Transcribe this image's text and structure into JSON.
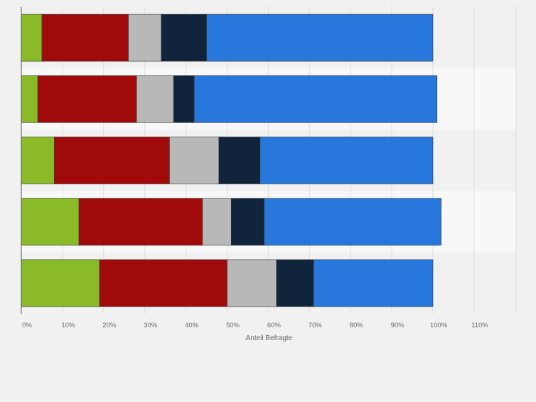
{
  "chart_data": {
    "type": "bar",
    "orientation": "horizontal",
    "stacked": true,
    "xlabel": "Anteil Befragte",
    "xlim": [
      0,
      120
    ],
    "xticks": [
      0,
      10,
      20,
      30,
      40,
      50,
      60,
      70,
      80,
      90,
      100,
      110
    ],
    "xtick_labels": [
      "0%",
      "10%",
      "20%",
      "30%",
      "40%",
      "50%",
      "60%",
      "70%",
      "80%",
      "90%",
      "100%",
      "110%"
    ],
    "categories": [
      "",
      "",
      "",
      "",
      ""
    ],
    "series": [
      {
        "color": "#8aba27",
        "values": [
          5,
          4,
          8,
          14,
          19
        ]
      },
      {
        "color": "#a10a0a",
        "values": [
          21,
          24,
          28,
          30,
          31
        ]
      },
      {
        "color": "#b8b8b8",
        "values": [
          8,
          9,
          12,
          7,
          12
        ]
      },
      {
        "color": "#10243b",
        "values": [
          11,
          5,
          10,
          8,
          9
        ]
      },
      {
        "color": "#2777dc",
        "values": [
          55,
          59,
          42,
          43,
          29
        ]
      }
    ],
    "grid": true,
    "legend": "none"
  },
  "colors": {
    "background": "#f1f1f1",
    "band_light": "#f8f8f8",
    "band_dark": "#f1f1f1",
    "gridline": "#dcdcdc",
    "axis": "#555555",
    "tick_text": "#666666"
  }
}
